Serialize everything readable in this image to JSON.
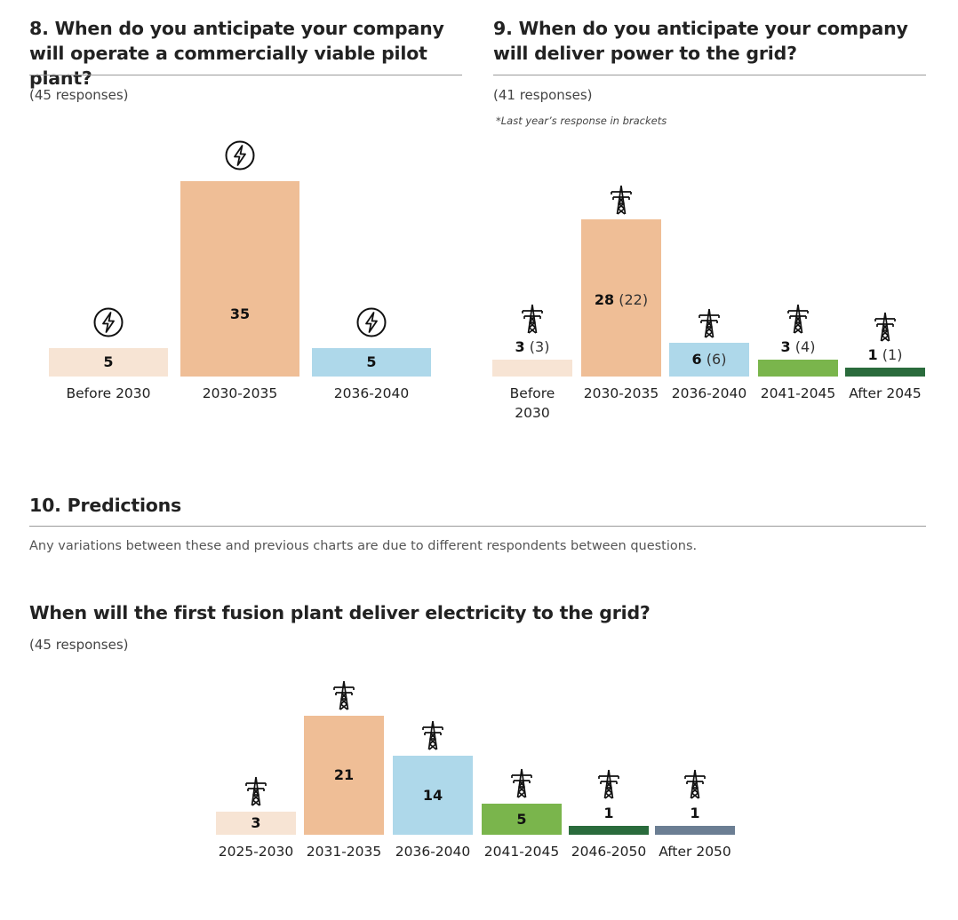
{
  "q8": {
    "title": "8. When do you anticipate your company will operate a commercially viable pilot plant?",
    "responses": "(45 responses)"
  },
  "q9": {
    "title": "9. When do you anticipate your company will deliver power to the grid?",
    "responses": "(41 responses)",
    "note": "*Last year’s response in brackets"
  },
  "q10": {
    "title": "10. Predictions",
    "description": "Any variations between these and previous charts are due to different respondents between questions.",
    "subtitle": "When will the first fusion plant deliver electricity to the grid?",
    "responses": "(45 responses)"
  },
  "chart_data": [
    {
      "type": "bar",
      "title": "8. When do you anticipate your company will operate a commercially viable pilot plant?",
      "categories": [
        "Before 2030",
        "2030-2035",
        "2036-2040"
      ],
      "values": [
        5,
        35,
        5
      ],
      "value_labels": [
        "5",
        "35",
        "5"
      ],
      "colors": [
        "#f7e4d4",
        "#efbe96",
        "#aed8ea"
      ],
      "icon": "lightning-icon",
      "ylim": [
        0,
        35
      ]
    },
    {
      "type": "bar",
      "title": "9. When do you anticipate your company will deliver power to the grid?",
      "categories": [
        "Before 2030",
        "2030-2035",
        "2036-2040",
        "2041-2045",
        "After 2045"
      ],
      "values": [
        3,
        28,
        6,
        3,
        1
      ],
      "previous_year": [
        3,
        22,
        6,
        4,
        1
      ],
      "value_labels": [
        "3",
        "28",
        "6",
        "3",
        "1"
      ],
      "previous_labels": [
        "(3)",
        "(22)",
        "(6)",
        "(4)",
        "(1)"
      ],
      "colors": [
        "#f7e4d4",
        "#efbe96",
        "#aed8ea",
        "#7ab54c",
        "#2a6b3c"
      ],
      "icon": "pylon-icon",
      "ylim": [
        0,
        28
      ]
    },
    {
      "type": "bar",
      "title": "When will the first fusion plant deliver electricity to the grid?",
      "categories": [
        "2025-2030",
        "2031-2035",
        "2036-2040",
        "2041-2045",
        "2046-2050",
        "After 2050"
      ],
      "values": [
        3,
        21,
        14,
        5,
        1,
        1
      ],
      "value_labels": [
        "3",
        "21",
        "14",
        "5",
        "1",
        "1"
      ],
      "colors": [
        "#f7e4d4",
        "#efbe96",
        "#aed8ea",
        "#7ab54c",
        "#2a6b3c",
        "#6b7e93"
      ],
      "icon": "pylon-icon",
      "ylim": [
        0,
        21
      ]
    }
  ]
}
